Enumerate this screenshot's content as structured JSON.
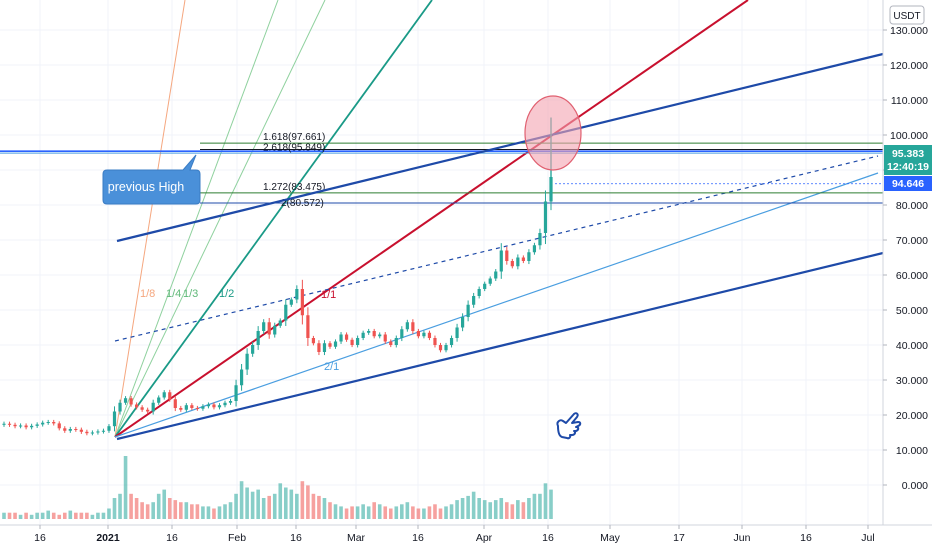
{
  "axis": {
    "currency": "USDT"
  },
  "tags": {
    "last_price": "95.383",
    "countdown": "12:40:19",
    "secondary_price": "94.646"
  },
  "annotations": {
    "callout_text": "previous High",
    "fib_levels": [
      {
        "label": "1.618(97.661)",
        "value": 97.661
      },
      {
        "label": "2.618(95.849)",
        "value": 95.849
      },
      {
        "label": "1.272(83.475)",
        "value": 83.475
      },
      {
        "label": "2(80.572)",
        "value": 80.572
      }
    ],
    "fan_labels": [
      "1/8",
      "1/4",
      "1/3",
      "1/2"
    ],
    "ratio_labels": [
      "1/1",
      "2/1"
    ]
  },
  "colors": {
    "up": "#26a69a",
    "down": "#ef5350",
    "red_line": "#c8102e",
    "blue_line": "#1e4aa8",
    "light_blue": "#4a9ee0",
    "teal": "#1a9a87",
    "callout": "#4a90d9",
    "price_tag": "#26a69a",
    "secondary_tag": "#2962ff",
    "circle_fill": "#f4a3b0",
    "circle_stroke": "#e06070"
  },
  "chart_data": {
    "type": "candlestick",
    "ylim": [
      -10,
      140
    ],
    "yticks": [
      0,
      10,
      20,
      30,
      40,
      50,
      60,
      70,
      80,
      90,
      100,
      110,
      120,
      130
    ],
    "ytick_labels": [
      "0.000",
      "10.000",
      "20.000",
      "30.000",
      "40.000",
      "50.000",
      "60.000",
      "70.000",
      "80.000",
      "90.000",
      "100.000",
      "110.000",
      "120.000",
      "130.000"
    ],
    "xticks": [
      "16",
      "2021",
      "16",
      "Feb",
      "16",
      "Mar",
      "16",
      "Apr",
      "16",
      "May",
      "17",
      "Jun",
      "16",
      "Jul"
    ],
    "horizontal_lines": [
      97.661,
      95.849,
      95.383,
      83.475,
      80.572
    ],
    "price_series_close": [
      17.5,
      17.2,
      16.8,
      17.0,
      16.5,
      16.9,
      17.3,
      17.8,
      18.0,
      17.6,
      16.2,
      15.5,
      16.0,
      15.8,
      15.2,
      14.8,
      15.0,
      15.3,
      15.5,
      16.8,
      21.0,
      23.5,
      24.8,
      23.0,
      22.2,
      21.5,
      21.0,
      23.5,
      25.0,
      26.5,
      24.5,
      22.0,
      21.5,
      22.8,
      22.0,
      21.8,
      22.5,
      23.0,
      22.2,
      22.8,
      23.5,
      24.0,
      28.5,
      33.0,
      37.5,
      40.0,
      44.0,
      46.5,
      43.0,
      45.5,
      47.0,
      51.5,
      53.0,
      56.0,
      48.5,
      42.0,
      40.5,
      38.0,
      40.5,
      39.5,
      41.0,
      43.0,
      41.5,
      40.0,
      42.0,
      43.5,
      44.0,
      42.5,
      43.0,
      41.0,
      40.0,
      42.0,
      44.5,
      46.5,
      44.0,
      42.5,
      43.5,
      42.0,
      40.0,
      38.5,
      40.0,
      42.0,
      45.0,
      48.0,
      51.5,
      54.0,
      56.0,
      57.5,
      59.0,
      61.0,
      67.0,
      64.0,
      62.5,
      65.0,
      64.0,
      66.5,
      68.5,
      72.0,
      81.0,
      88.0
    ],
    "volume": [
      3,
      3,
      3,
      2,
      3,
      2,
      3,
      3,
      4,
      3,
      2,
      3,
      4,
      3,
      3,
      3,
      2,
      3,
      3,
      5,
      10,
      12,
      30,
      12,
      10,
      8,
      7,
      8,
      12,
      14,
      10,
      9,
      8,
      8,
      7,
      7,
      6,
      6,
      5,
      6,
      7,
      8,
      12,
      18,
      15,
      13,
      14,
      10,
      11,
      12,
      17,
      15,
      14,
      12,
      18,
      16,
      12,
      11,
      10,
      8,
      7,
      6,
      5,
      6,
      6,
      7,
      6,
      8,
      7,
      6,
      5,
      6,
      7,
      8,
      6,
      5,
      5,
      6,
      7,
      5,
      6,
      7,
      9,
      10,
      11,
      13,
      10,
      9,
      8,
      9,
      10,
      8,
      7,
      9,
      8,
      10,
      12,
      12,
      17,
      14
    ]
  }
}
